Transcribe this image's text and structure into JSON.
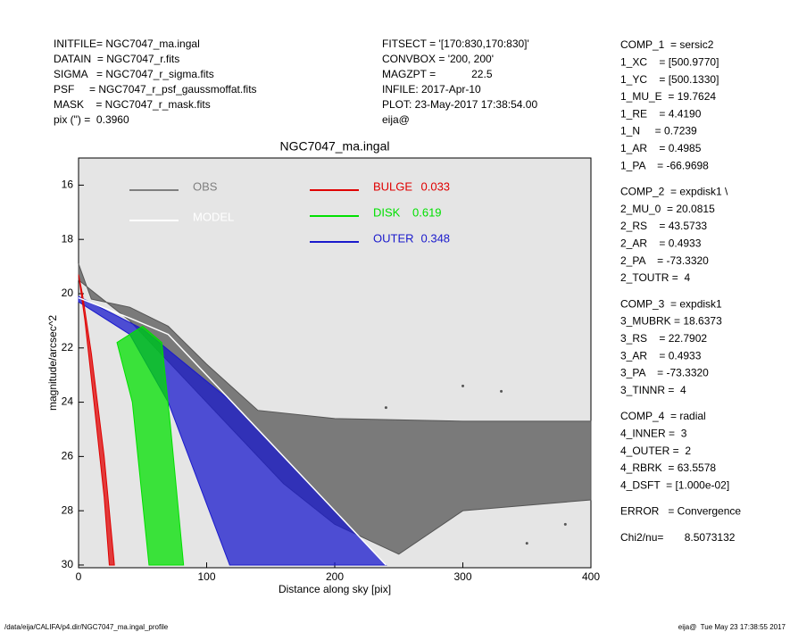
{
  "header": {
    "left": [
      "INITFILE= NGC7047_ma.ingal",
      "DATAIN  = NGC7047_r.fits",
      "SIGMA   = NGC7047_r_sigma.fits",
      "PSF     = NGC7047_r_psf_gaussmoffat.fits",
      "MASK    = NGC7047_r_mask.fits",
      "pix (\") =  0.3960"
    ],
    "middle": [
      "FITSECT = '[170:830,170:830]'",
      "CONVBOX = '200, 200'",
      "MAGZPT =            22.5",
      "INFILE: 2017-Apr-10",
      "PLOT: 23-May-2017 17:38:54.00",
      "eija@"
    ]
  },
  "params": [
    [
      "COMP_1  = sersic2",
      "1_XC    = [500.9770]",
      "1_YC    = [500.1330]",
      "1_MU_E  = 19.7624",
      "1_RE    = 4.4190",
      "1_N     = 0.7239",
      "1_AR    = 0.4985",
      "1_PA    = -66.9698"
    ],
    [
      "COMP_2  = expdisk1 \\",
      "2_MU_0  = 20.0815",
      "2_RS    = 43.5733",
      "2_AR    = 0.4933",
      "2_PA    = -73.3320",
      "2_TOUTR =  4"
    ],
    [
      "COMP_3  = expdisk1",
      "3_MUBRK = 18.6373",
      "3_RS    = 22.7902",
      "3_AR    = 0.4933",
      "3_PA    = -73.3320",
      "3_TINNR =  4"
    ],
    [
      "COMP_4  = radial",
      "4_INNER =  3",
      "4_OUTER =  2",
      "4_RBRK  = 63.5578",
      "4_DSFT  = [1.000e-02]"
    ],
    [
      "ERROR   = Convergence"
    ],
    [
      "Chi2/nu=       8.5073132"
    ]
  ],
  "footer": {
    "left": "/data/eija/CALIFA/p4.dir/NGC7047_ma.ingal_profile",
    "right": "eija@  Tue May 23 17:38:55 2017"
  },
  "chart_data": {
    "type": "area",
    "title": "NGC7047_ma.ingal",
    "x_label": "Distance along sky [pix]",
    "y_label": "magnitude/arcsec^2",
    "xlim": [
      0,
      400
    ],
    "xticks": [
      0,
      100,
      200,
      300,
      400
    ],
    "ylim": [
      30.1,
      15
    ],
    "yticks": [
      16,
      18,
      20,
      22,
      24,
      26,
      28,
      30
    ],
    "background": "#e5e5e5",
    "series": [
      {
        "name": "OBS",
        "color": "#555555",
        "legend_color": "#7f7f7f",
        "x": [
          0,
          10,
          40,
          70,
          100,
          140,
          200,
          300,
          400,
          400,
          300,
          250,
          200,
          160,
          120,
          80,
          40,
          0
        ],
        "values": [
          18.9,
          20.2,
          20.5,
          21.2,
          22.6,
          24.3,
          24.6,
          24.7,
          24.7,
          27.6,
          28,
          29.6,
          28.5,
          27,
          25,
          23,
          21,
          19.5
        ]
      },
      {
        "name": "OUTER",
        "fraction": 0.348,
        "color": "#1a1acc",
        "x": [
          0,
          50,
          120,
          240,
          118,
          70,
          40,
          0
        ],
        "values": [
          20.1,
          21.3,
          24,
          30,
          30,
          24,
          21.5,
          20.3
        ]
      },
      {
        "name": "DISK",
        "fraction": 0.619,
        "color": "#00e000",
        "x": [
          30,
          50,
          65,
          72,
          82,
          55,
          42
        ],
        "values": [
          21.8,
          21.2,
          21.8,
          25,
          30,
          30,
          24
        ]
      },
      {
        "name": "BULGE",
        "fraction": 0.033,
        "color": "#e00000",
        "x": [
          0,
          5,
          12,
          20,
          24,
          28,
          20,
          10,
          3
        ],
        "values": [
          19.3,
          21,
          24,
          27.5,
          30,
          30,
          26,
          22.2,
          20
        ]
      }
    ],
    "outliers": {
      "x": [
        240,
        300,
        330,
        380,
        350
      ],
      "values": [
        24.2,
        23.4,
        23.6,
        28.5,
        29.2
      ]
    },
    "model": {
      "name": "MODEL",
      "color": "#ffffff",
      "x": [
        0,
        40,
        70,
        120,
        240
      ],
      "values": [
        20.15,
        20.9,
        21.5,
        24,
        30
      ]
    }
  }
}
